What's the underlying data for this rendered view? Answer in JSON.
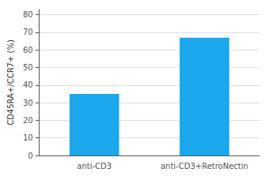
{
  "chart_data": {
    "type": "bar",
    "categories": [
      "anti-CD3",
      "anti-CD3+RetroNectin"
    ],
    "values": [
      35,
      67
    ],
    "color": "#1aA7EC",
    "ylabel": "CD45RA+/CCR7+ (%)",
    "ylim": [
      0,
      83
    ],
    "yticks": [
      0,
      10,
      20,
      30,
      40,
      50,
      60,
      70,
      80
    ],
    "grid": true
  }
}
